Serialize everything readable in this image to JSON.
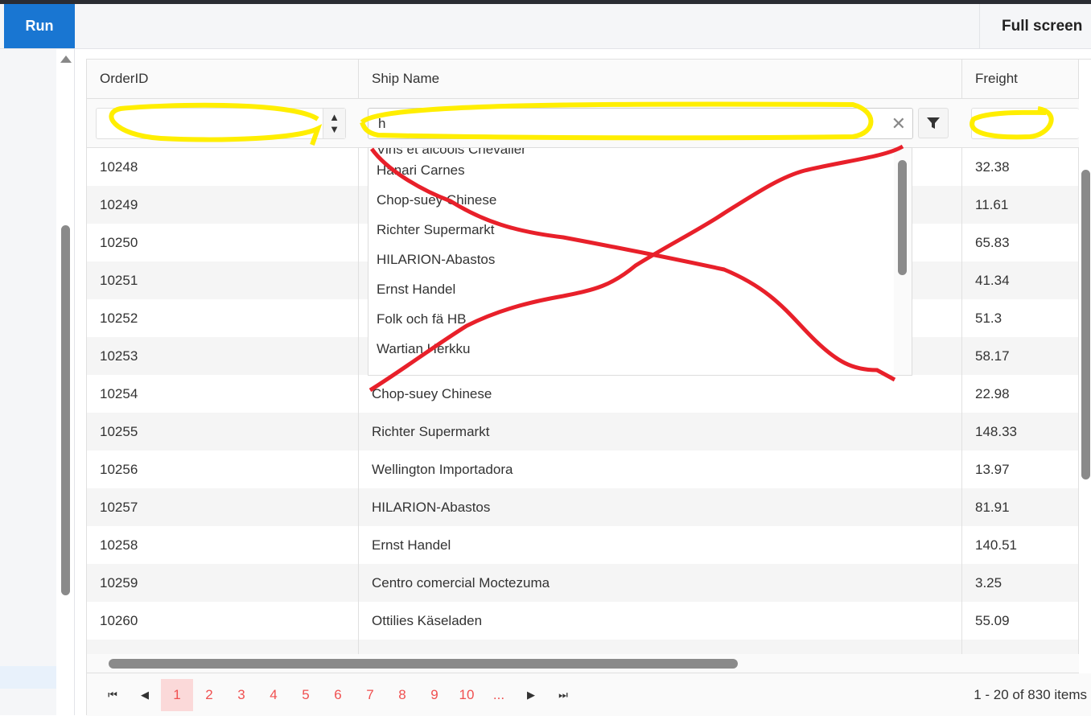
{
  "toolbar": {
    "run_label": "Run",
    "fullscreen_label": "Full screen"
  },
  "grid": {
    "columns": [
      "OrderID",
      "Ship Name",
      "Freight"
    ],
    "filters": {
      "orderid": "",
      "shipname": "h",
      "freight": ""
    },
    "rows": [
      {
        "id": "10248",
        "ship": "",
        "freight": "32.38"
      },
      {
        "id": "10249",
        "ship": "",
        "freight": "11.61"
      },
      {
        "id": "10250",
        "ship": "",
        "freight": "65.83"
      },
      {
        "id": "10251",
        "ship": "",
        "freight": "41.34"
      },
      {
        "id": "10252",
        "ship": "",
        "freight": "51.3"
      },
      {
        "id": "10253",
        "ship": "",
        "freight": "58.17"
      },
      {
        "id": "10254",
        "ship": "Chop-suey Chinese",
        "freight": "22.98"
      },
      {
        "id": "10255",
        "ship": "Richter Supermarkt",
        "freight": "148.33"
      },
      {
        "id": "10256",
        "ship": "Wellington Importadora",
        "freight": "13.97"
      },
      {
        "id": "10257",
        "ship": "HILARION-Abastos",
        "freight": "81.91"
      },
      {
        "id": "10258",
        "ship": "Ernst Handel",
        "freight": "140.51"
      },
      {
        "id": "10259",
        "ship": "Centro comercial Moctezuma",
        "freight": "3.25"
      },
      {
        "id": "10260",
        "ship": "Ottilies Käseladen",
        "freight": "55.09"
      },
      {
        "id": "",
        "ship": "",
        "freight": ""
      }
    ]
  },
  "autocomplete": [
    "Vins et alcools Chevalier",
    "Hanari Carnes",
    "Chop-suey Chinese",
    "Richter Supermarkt",
    "HILARION-Abastos",
    "Ernst Handel",
    "Folk och fä HB",
    "Wartian Herkku"
  ],
  "pager": {
    "pages": [
      "1",
      "2",
      "3",
      "4",
      "5",
      "6",
      "7",
      "8",
      "9",
      "10",
      "..."
    ],
    "current": "1",
    "info": "1 - 20 of 830 items"
  },
  "colors": {
    "accent": "#1976d2",
    "pager_link": "#f05050",
    "annotation_yellow": "#ffee00",
    "annotation_red": "#e8202a"
  }
}
